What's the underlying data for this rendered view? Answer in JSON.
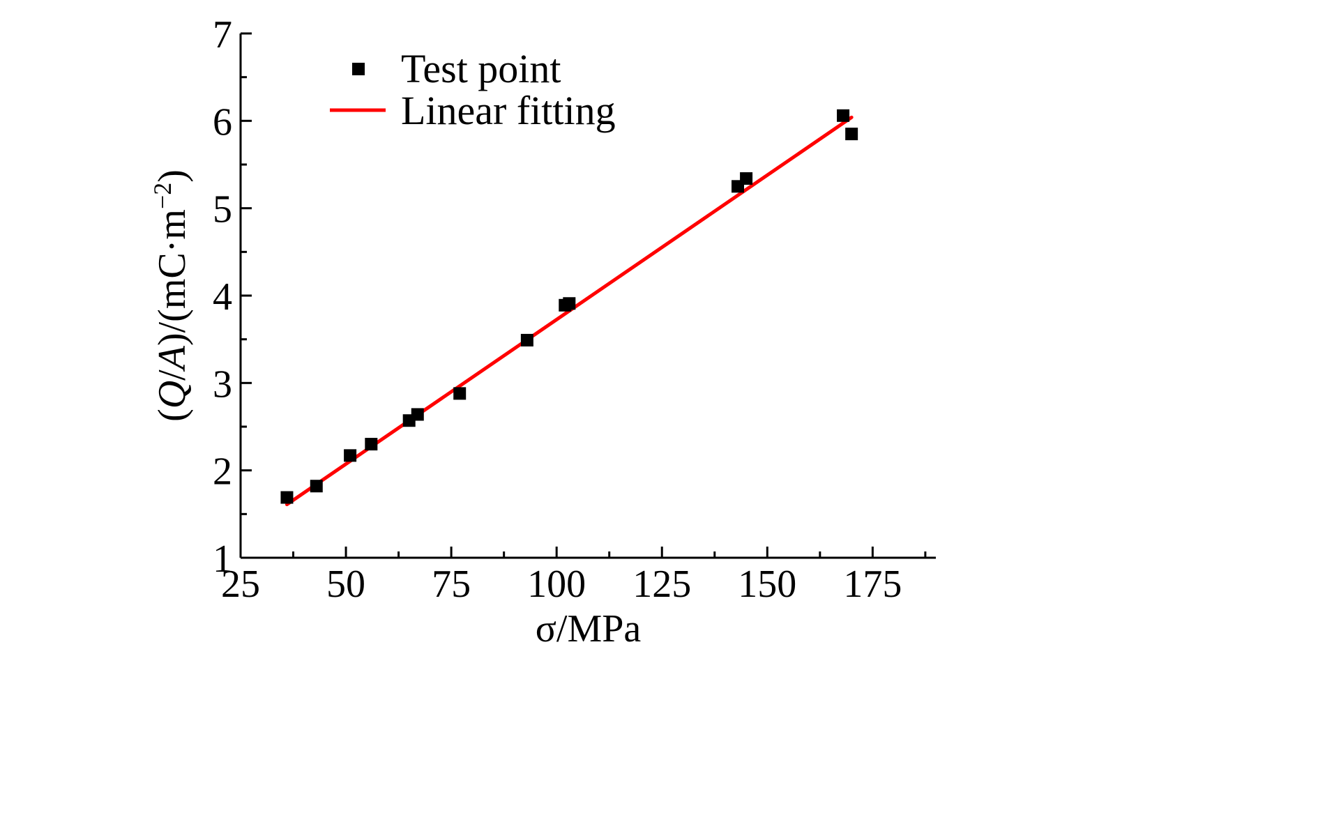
{
  "chart_data": {
    "type": "scatter",
    "title": "",
    "xlabel": "σ/MPa",
    "ylabel": "(Q/A)/(mC·m⁻²)",
    "ylabel_parts": {
      "pre": "(",
      "q": "Q",
      "slash": "/",
      "a": "A",
      "mid": ")/(mC·m",
      "sup": "−2",
      "post": ")"
    },
    "xlim": [
      25,
      190
    ],
    "ylim": [
      1,
      7
    ],
    "x_ticks": [
      25,
      50,
      75,
      100,
      125,
      150,
      175
    ],
    "y_ticks": [
      1,
      2,
      3,
      4,
      5,
      6,
      7
    ],
    "grid": false,
    "legend_position": "top-left",
    "series": [
      {
        "name": "Test point",
        "type": "scatter",
        "marker": "square",
        "color": "#000000",
        "x": [
          36,
          43,
          51,
          56,
          65,
          67,
          77,
          93,
          102,
          103,
          143,
          145,
          168,
          170
        ],
        "y": [
          1.69,
          1.82,
          2.17,
          2.3,
          2.57,
          2.64,
          2.88,
          3.49,
          3.89,
          3.91,
          5.25,
          5.34,
          6.06,
          5.85
        ]
      },
      {
        "name": "Linear fitting",
        "type": "line",
        "color": "#ff0000",
        "x": [
          36,
          170
        ],
        "y": [
          1.61,
          6.04
        ]
      }
    ]
  }
}
